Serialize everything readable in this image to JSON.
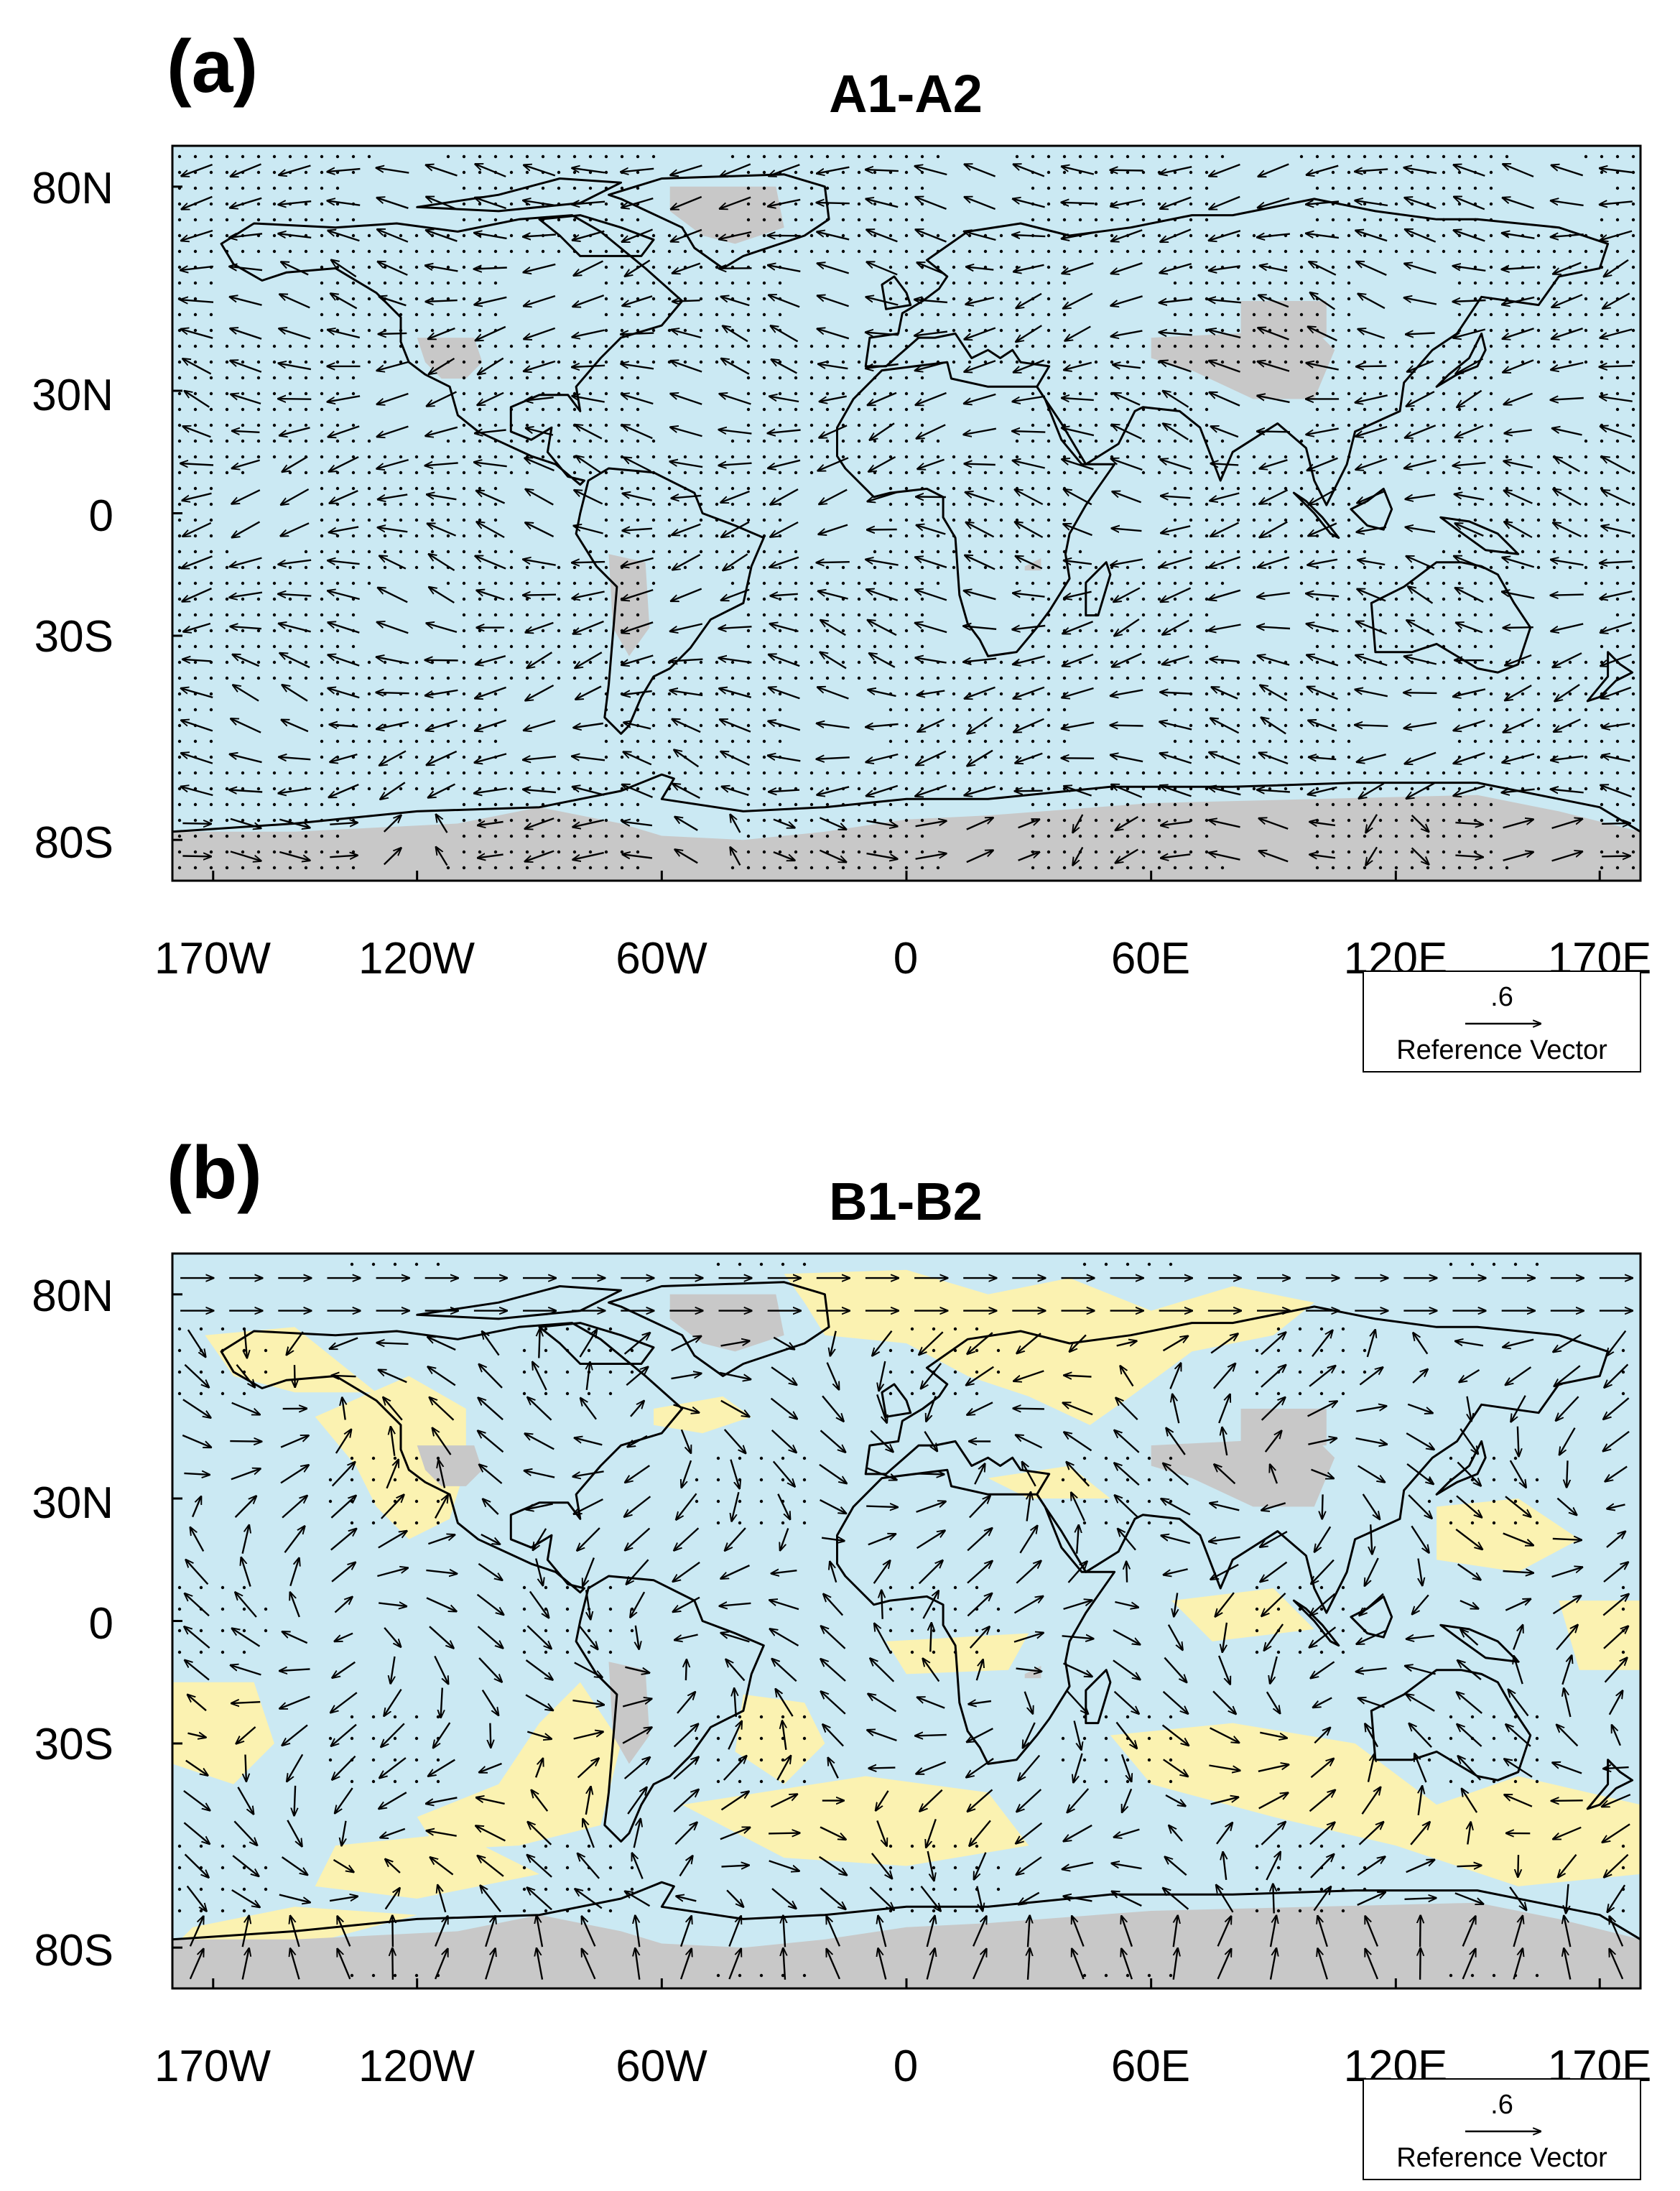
{
  "colors": {
    "ocean_background": "#cbe9f3",
    "positive_anomaly": "#fbf2b1",
    "masked_land": "#c8c8c8",
    "coastline": "#000000",
    "vectors": "#000000"
  },
  "panels": [
    {
      "id": "a",
      "letter": "(a)",
      "title": "A1-A2",
      "yellow_regions": false,
      "lat_ticks": [
        "80N",
        "30N",
        "0",
        "30S",
        "80S"
      ],
      "lon_ticks": [
        "170W",
        "120W",
        "60W",
        "0",
        "60E",
        "120E",
        "170E"
      ],
      "reference_vector": {
        "magnitude": ".6",
        "label": "Reference Vector"
      },
      "vector_field": "uniform-westward-anomalies",
      "stippling": "dense"
    },
    {
      "id": "b",
      "letter": "(b)",
      "title": "B1-B2",
      "yellow_regions": true,
      "lat_ticks": [
        "80N",
        "30N",
        "0",
        "30S",
        "80S"
      ],
      "lon_ticks": [
        "170W",
        "120W",
        "60W",
        "0",
        "60E",
        "120E",
        "170E"
      ],
      "reference_vector": {
        "magnitude": ".6",
        "label": "Reference Vector"
      },
      "vector_field": "mixed-anomalies",
      "stippling": "sparse"
    }
  ],
  "map_extent": {
    "lon_min": -180,
    "lon_max": 180,
    "lat_min": -90,
    "lat_max": 90
  },
  "lat_tick_values": [
    80,
    30,
    0,
    -30,
    -80
  ],
  "lon_tick_values": [
    -170,
    -120,
    -60,
    0,
    60,
    120,
    170
  ]
}
